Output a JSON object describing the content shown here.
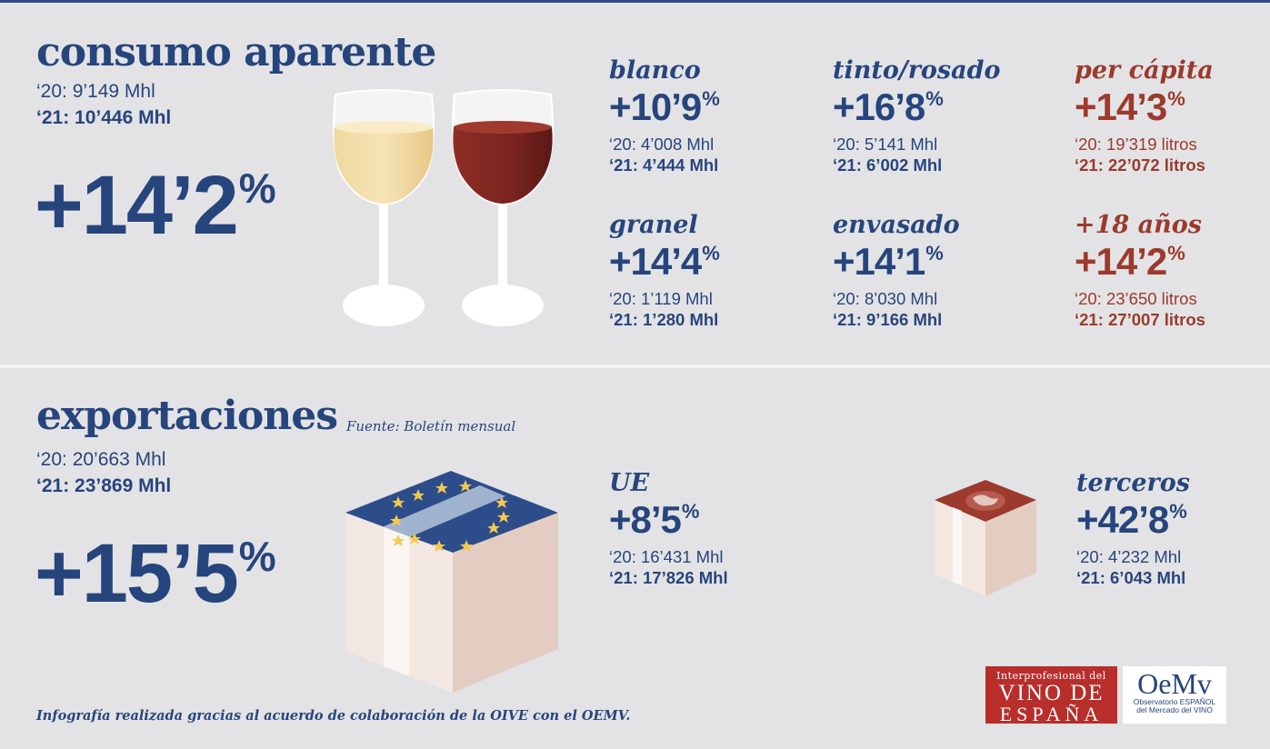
{
  "consumo": {
    "title": "consumo aparente",
    "prev": "‘20: 9’149 Mhl",
    "curr": "‘21: 10’446 Mhl",
    "pct": "+14’2",
    "pct_symbol": "%"
  },
  "categories": [
    {
      "label": "blanco",
      "pct": "+10’9",
      "sym": "%",
      "prev": "‘20: 4’008 Mhl",
      "curr": "‘21: 4’444 Mhl",
      "color": "blue"
    },
    {
      "label": "tinto/rosado",
      "pct": "+16’8",
      "sym": "%",
      "prev": "‘20: 5’141 Mhl",
      "curr": "‘21: 6’002 Mhl",
      "color": "blue"
    },
    {
      "label": "per cápita",
      "pct": "+14’3",
      "sym": "%",
      "prev": "‘20: 19’319 litros",
      "curr": "‘21: 22’072 litros",
      "color": "red"
    },
    {
      "label": "granel",
      "pct": "+14’4",
      "sym": "%",
      "prev": "‘20: 1’119 Mhl",
      "curr": "‘21: 1’280 Mhl",
      "color": "blue"
    },
    {
      "label": "envasado",
      "pct": "+14’1",
      "sym": "%",
      "prev": "‘20: 8’030 Mhl",
      "curr": "‘21: 9’166 Mhl",
      "color": "blue"
    },
    {
      "label": "+18 años",
      "pct": "+14’2",
      "sym": "%",
      "prev": "‘20: 23’650 litros",
      "curr": "‘21: 27’007 litros",
      "color": "red"
    }
  ],
  "exportaciones": {
    "title": "exportaciones",
    "source": "Fuente: Boletín mensual",
    "prev": "‘20: 20’663 Mhl",
    "curr": "‘21: 23’869 Mhl",
    "pct": "+15’5",
    "pct_symbol": "%"
  },
  "export_categories": [
    {
      "label": "UE",
      "pct": "+8’5",
      "sym": "%",
      "prev": "‘20: 16’431 Mhl",
      "curr": "‘21: 17’826 Mhl"
    },
    {
      "label": "terceros",
      "pct": "+42’8",
      "sym": "%",
      "prev": "‘20: 4’232 Mhl",
      "curr": "‘21: 6’043 Mhl"
    }
  ],
  "footer": "Infografía realizada gracias al acuerdo de colaboración de la OIVE con el OEMV.",
  "logos": {
    "oive_line1": "Interprofesional del",
    "oive_line2": "VINO DE",
    "oive_line3": "ESPAÑA",
    "oemv_mark": "OeMv",
    "oemv_line1": "Observatorio ESPAÑOL",
    "oemv_line2": "del Mercado del VINO"
  },
  "colors": {
    "blue": "#27457d",
    "red": "#9b3a2d",
    "background": "#e3e3e5"
  }
}
